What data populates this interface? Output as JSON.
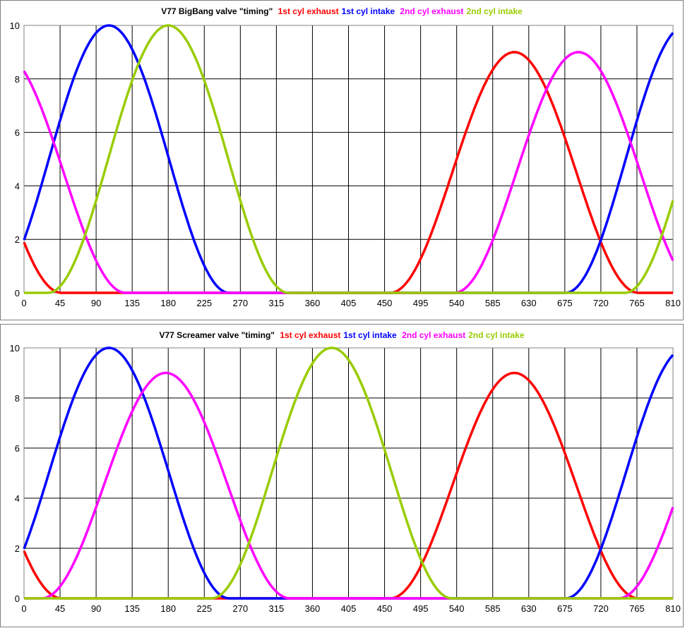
{
  "colors": {
    "exhaust1": "#ff0000",
    "intake1": "#0000ff",
    "exhaust2": "#ff00ff",
    "intake2": "#99cc00"
  },
  "chart_data": [
    {
      "type": "line",
      "title": "V77 BigBang valve \"timing\"",
      "legend": [
        "1st cyl exhaust",
        "1st cyl intake",
        "2nd cyl exhaust",
        "2nd cyl intake"
      ],
      "xlim": [
        0,
        810
      ],
      "ylim": [
        0,
        10
      ],
      "x_ticks": [
        0,
        45,
        90,
        135,
        180,
        225,
        270,
        315,
        360,
        405,
        450,
        495,
        540,
        585,
        630,
        675,
        720,
        765,
        810
      ],
      "y_ticks": [
        0,
        2,
        4,
        6,
        8,
        10
      ],
      "grid": true,
      "series": [
        {
          "name": "1st cyl exhaust",
          "color": "#ff0000",
          "peak": 9,
          "center": 612,
          "halfwidth": 155,
          "periodic": true
        },
        {
          "name": "1st cyl intake",
          "color": "#0000ff",
          "peak": 10,
          "center": 106,
          "halfwidth": 150,
          "periodic": true
        },
        {
          "name": "2nd cyl exhaust",
          "color": "#ff00ff",
          "peak": 9,
          "center": 692,
          "halfwidth": 155,
          "periodic": true
        },
        {
          "name": "2nd cyl intake",
          "color": "#99cc00",
          "peak": 10,
          "center": 180,
          "halfwidth": 150,
          "periodic": true
        }
      ]
    },
    {
      "type": "line",
      "title": "V77 Screamer valve \"timing\"",
      "legend": [
        "1st cyl exhaust",
        "1st cyl intake",
        "2nd cyl exhaust",
        "2nd cyl intake"
      ],
      "xlim": [
        0,
        810
      ],
      "ylim": [
        0,
        10
      ],
      "x_ticks": [
        0,
        45,
        90,
        135,
        180,
        225,
        270,
        315,
        360,
        405,
        450,
        495,
        540,
        585,
        630,
        675,
        720,
        765,
        810
      ],
      "y_ticks": [
        0,
        2,
        4,
        6,
        8,
        10
      ],
      "grid": true,
      "series": [
        {
          "name": "1st cyl exhaust",
          "color": "#ff0000",
          "peak": 9,
          "center": 612,
          "halfwidth": 155,
          "periodic": true
        },
        {
          "name": "1st cyl intake",
          "color": "#0000ff",
          "peak": 10,
          "center": 106,
          "halfwidth": 150,
          "periodic": true
        },
        {
          "name": "2nd cyl exhaust",
          "color": "#ff00ff",
          "peak": 9,
          "center": 177,
          "halfwidth": 155,
          "periodic": true
        },
        {
          "name": "2nd cyl intake",
          "color": "#99cc00",
          "peak": 10,
          "center": 384,
          "halfwidth": 150,
          "periodic": true
        }
      ]
    }
  ]
}
